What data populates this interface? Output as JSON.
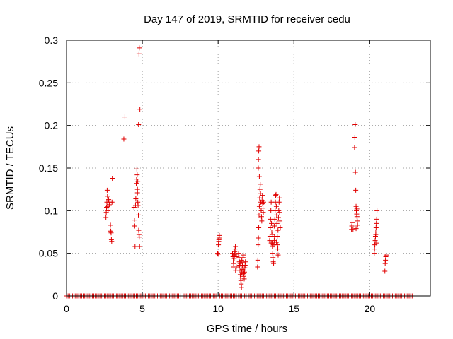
{
  "chart_data": {
    "type": "scatter",
    "title": "Day 147 of 2019, SRMTID for receiver cedu",
    "xlabel": "GPS time / hours",
    "ylabel": "SRMTID / TECUs",
    "xlim": [
      0,
      24
    ],
    "ylim": [
      0,
      0.3
    ],
    "xticks": [
      0,
      5,
      10,
      15,
      20
    ],
    "xtick_labels": [
      "0",
      "5",
      "10",
      "15",
      "20"
    ],
    "yticks": [
      0,
      0.05,
      0.1,
      0.15,
      0.2,
      0.25,
      0.3
    ],
    "ytick_labels": [
      "0",
      "0.05",
      "0.1",
      "0.15",
      "0.2",
      "0.25",
      "0.3"
    ],
    "grid": true,
    "marker": "+",
    "color": "#e00000",
    "zero_baseline": {
      "value": 0,
      "ranges": [
        [
          0.0,
          2.5
        ],
        [
          2.6,
          4.4
        ],
        [
          4.5,
          7.5
        ],
        [
          7.7,
          9.9
        ],
        [
          10.1,
          11.2
        ],
        [
          11.35,
          11.85
        ],
        [
          12.0,
          13.9
        ],
        [
          14.0,
          22.8
        ]
      ],
      "step": 0.1
    },
    "series": [
      {
        "name": "SRMTID",
        "points": [
          [
            2.6,
            0.092
          ],
          [
            2.62,
            0.098
          ],
          [
            2.64,
            0.104
          ],
          [
            2.66,
            0.11
          ],
          [
            2.68,
            0.124
          ],
          [
            2.7,
            0.117
          ],
          [
            2.72,
            0.105
          ],
          [
            2.74,
            0.1
          ],
          [
            2.78,
            0.113
          ],
          [
            2.82,
            0.107
          ],
          [
            2.86,
            0.11
          ],
          [
            2.9,
            0.083
          ],
          [
            2.92,
            0.076
          ],
          [
            2.94,
            0.074
          ],
          [
            2.96,
            0.066
          ],
          [
            2.98,
            0.064
          ],
          [
            3.0,
            0.11
          ],
          [
            3.02,
            0.138
          ],
          [
            3.78,
            0.184
          ],
          [
            3.85,
            0.21
          ],
          [
            4.45,
            0.104
          ],
          [
            4.48,
            0.089
          ],
          [
            4.5,
            0.082
          ],
          [
            4.52,
            0.058
          ],
          [
            4.55,
            0.106
          ],
          [
            4.57,
            0.114
          ],
          [
            4.6,
            0.132
          ],
          [
            4.62,
            0.137
          ],
          [
            4.64,
            0.149
          ],
          [
            4.66,
            0.142
          ],
          [
            4.68,
            0.121
          ],
          [
            4.7,
            0.11
          ],
          [
            4.72,
            0.106
          ],
          [
            4.74,
            0.095
          ],
          [
            4.76,
            0.077
          ],
          [
            4.78,
            0.072
          ],
          [
            4.8,
            0.069
          ],
          [
            4.82,
            0.058
          ],
          [
            4.7,
            0.134
          ],
          [
            4.68,
            0.125
          ],
          [
            4.75,
            0.201
          ],
          [
            4.78,
            0.284
          ],
          [
            4.8,
            0.291
          ],
          [
            4.84,
            0.219
          ],
          [
            9.97,
            0.05
          ],
          [
            10.0,
            0.049
          ],
          [
            10.02,
            0.06
          ],
          [
            10.04,
            0.064
          ],
          [
            10.06,
            0.068
          ],
          [
            10.08,
            0.071
          ],
          [
            10.05,
            0.066
          ],
          [
            10.95,
            0.05
          ],
          [
            10.98,
            0.046
          ],
          [
            11.0,
            0.041
          ],
          [
            11.02,
            0.038
          ],
          [
            11.04,
            0.034
          ],
          [
            11.06,
            0.044
          ],
          [
            11.08,
            0.048
          ],
          [
            11.1,
            0.052
          ],
          [
            11.12,
            0.055
          ],
          [
            11.14,
            0.058
          ],
          [
            11.16,
            0.049
          ],
          [
            11.18,
            0.046
          ],
          [
            11.2,
            0.034
          ],
          [
            11.15,
            0.03
          ],
          [
            11.35,
            0.05
          ],
          [
            11.38,
            0.045
          ],
          [
            11.4,
            0.04
          ],
          [
            11.42,
            0.036
          ],
          [
            11.44,
            0.03
          ],
          [
            11.46,
            0.025
          ],
          [
            11.48,
            0.021
          ],
          [
            11.5,
            0.018
          ],
          [
            11.52,
            0.014
          ],
          [
            11.54,
            0.01
          ],
          [
            11.56,
            0.027
          ],
          [
            11.58,
            0.031
          ],
          [
            11.6,
            0.035
          ],
          [
            11.62,
            0.039
          ],
          [
            11.64,
            0.045
          ],
          [
            11.66,
            0.048
          ],
          [
            11.68,
            0.03
          ],
          [
            11.7,
            0.026
          ],
          [
            11.72,
            0.02
          ],
          [
            11.74,
            0.028
          ],
          [
            11.76,
            0.033
          ],
          [
            11.78,
            0.036
          ],
          [
            11.8,
            0.04
          ],
          [
            11.45,
            0.038
          ],
          [
            11.55,
            0.042
          ],
          [
            11.65,
            0.023
          ],
          [
            12.6,
            0.034
          ],
          [
            12.62,
            0.042
          ],
          [
            12.64,
            0.06
          ],
          [
            12.66,
            0.068
          ],
          [
            12.68,
            0.08
          ],
          [
            12.7,
            0.095
          ],
          [
            12.72,
            0.105
          ],
          [
            12.74,
            0.115
          ],
          [
            12.76,
            0.125
          ],
          [
            12.78,
            0.131
          ],
          [
            12.8,
            0.12
          ],
          [
            12.82,
            0.11
          ],
          [
            12.84,
            0.1
          ],
          [
            12.86,
            0.093
          ],
          [
            12.88,
            0.088
          ],
          [
            12.9,
            0.112
          ],
          [
            12.92,
            0.118
          ],
          [
            12.94,
            0.108
          ],
          [
            12.96,
            0.103
          ],
          [
            12.98,
            0.098
          ],
          [
            13.0,
            0.11
          ],
          [
            12.65,
            0.15
          ],
          [
            12.66,
            0.16
          ],
          [
            12.68,
            0.17
          ],
          [
            12.7,
            0.175
          ],
          [
            12.72,
            0.14
          ],
          [
            13.4,
            0.065
          ],
          [
            13.42,
            0.07
          ],
          [
            13.44,
            0.08
          ],
          [
            13.46,
            0.09
          ],
          [
            13.48,
            0.1
          ],
          [
            13.5,
            0.11
          ],
          [
            13.52,
            0.085
          ],
          [
            13.54,
            0.075
          ],
          [
            13.56,
            0.062
          ],
          [
            13.58,
            0.058
          ],
          [
            13.6,
            0.05
          ],
          [
            13.62,
            0.045
          ],
          [
            13.64,
            0.04
          ],
          [
            13.66,
            0.038
          ],
          [
            13.68,
            0.06
          ],
          [
            13.7,
            0.065
          ],
          [
            13.72,
            0.07
          ],
          [
            13.74,
            0.09
          ],
          [
            13.76,
            0.1
          ],
          [
            13.78,
            0.11
          ],
          [
            13.8,
            0.118
          ],
          [
            13.82,
            0.119
          ],
          [
            13.84,
            0.105
          ],
          [
            13.86,
            0.095
          ],
          [
            13.88,
            0.085
          ],
          [
            13.9,
            0.07
          ],
          [
            13.92,
            0.06
          ],
          [
            13.94,
            0.055
          ],
          [
            13.96,
            0.048
          ],
          [
            13.98,
            0.092
          ],
          [
            14.0,
            0.1
          ],
          [
            14.02,
            0.11
          ],
          [
            14.04,
            0.115
          ],
          [
            14.06,
            0.098
          ],
          [
            14.08,
            0.088
          ],
          [
            14.1,
            0.08
          ],
          [
            13.5,
            0.062
          ],
          [
            13.6,
            0.072
          ],
          [
            13.7,
            0.082
          ],
          [
            13.85,
            0.063
          ],
          [
            13.95,
            0.077
          ],
          [
            18.8,
            0.078
          ],
          [
            18.82,
            0.082
          ],
          [
            18.84,
            0.086
          ],
          [
            18.9,
            0.078
          ],
          [
            19.0,
            0.174
          ],
          [
            19.02,
            0.186
          ],
          [
            19.04,
            0.201
          ],
          [
            19.06,
            0.145
          ],
          [
            19.08,
            0.124
          ],
          [
            19.1,
            0.105
          ],
          [
            19.12,
            0.1
          ],
          [
            19.14,
            0.096
          ],
          [
            19.16,
            0.093
          ],
          [
            19.18,
            0.088
          ],
          [
            19.2,
            0.083
          ],
          [
            19.1,
            0.079
          ],
          [
            19.15,
            0.102
          ],
          [
            20.3,
            0.05
          ],
          [
            20.32,
            0.055
          ],
          [
            20.34,
            0.06
          ],
          [
            20.36,
            0.065
          ],
          [
            20.38,
            0.07
          ],
          [
            20.4,
            0.075
          ],
          [
            20.42,
            0.08
          ],
          [
            20.44,
            0.085
          ],
          [
            20.46,
            0.09
          ],
          [
            20.48,
            0.1
          ],
          [
            20.4,
            0.072
          ],
          [
            20.45,
            0.062
          ],
          [
            21.0,
            0.029
          ],
          [
            21.02,
            0.038
          ],
          [
            21.04,
            0.042
          ],
          [
            21.06,
            0.046
          ],
          [
            21.08,
            0.048
          ]
        ]
      }
    ]
  }
}
